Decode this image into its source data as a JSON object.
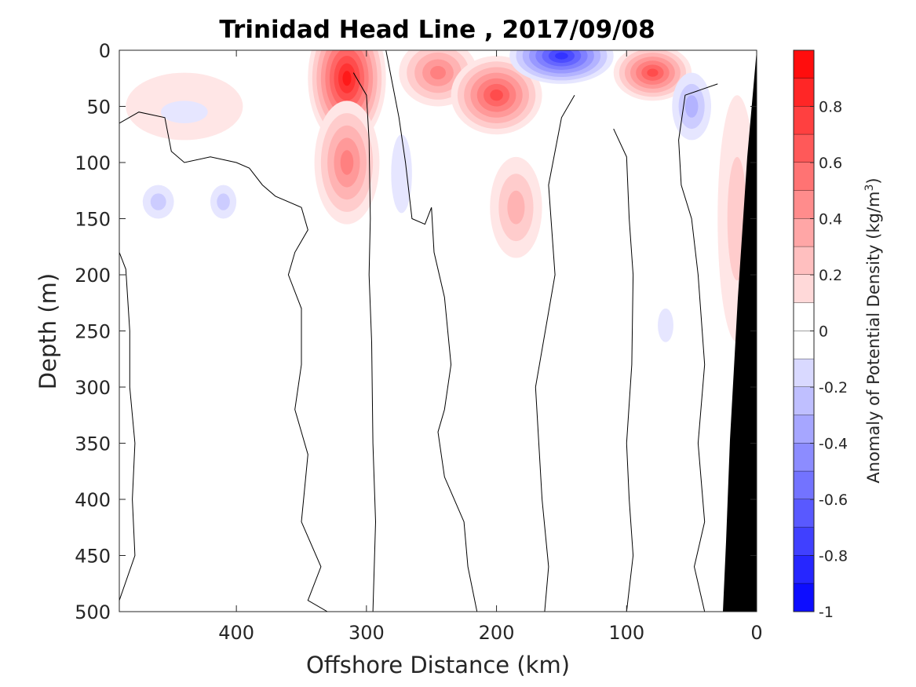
{
  "chart_data": {
    "type": "heatmap",
    "subtype": "filled contour section",
    "title": "Trinidad Head Line , 2017/09/08",
    "xlabel": "Offshore Distance (km)",
    "ylabel": "Depth (m)",
    "xlim": [
      490,
      0
    ],
    "ylim": [
      0,
      500
    ],
    "x_reversed": true,
    "y_reversed": true,
    "xticks": [
      400,
      300,
      200,
      100,
      0
    ],
    "xtick_labels": [
      "400",
      "300",
      "200",
      "100",
      "0"
    ],
    "yticks": [
      0,
      50,
      100,
      150,
      200,
      250,
      300,
      350,
      400,
      450,
      500
    ],
    "ytick_labels": [
      "0",
      "50",
      "100",
      "150",
      "200",
      "250",
      "300",
      "350",
      "400",
      "450",
      "500"
    ],
    "colorbar": {
      "label": "Anomaly of Potential Density (kg/m",
      "label_superscript": "3",
      "label_suffix": ")",
      "range": [
        -1,
        1
      ],
      "levels": 20,
      "colormap": "blue-white-red",
      "ticks": [
        0.8,
        0.6,
        0.4,
        0.2,
        0,
        -0.2,
        -0.4,
        -0.6,
        -0.8,
        -1
      ],
      "tick_labels": [
        "0.8",
        "0.6",
        "0.4",
        "0.2",
        "0",
        "-0.2",
        "-0.4",
        "-0.6",
        "-0.8",
        "-1"
      ]
    },
    "anomaly_features": [
      {
        "name": "core near 315 km",
        "x": 315,
        "depth": 25,
        "value": 0.95,
        "rx": 30,
        "ry": 60
      },
      {
        "name": "plume below core",
        "x": 315,
        "depth": 100,
        "value": 0.45,
        "rx": 25,
        "ry": 55
      },
      {
        "name": "patch near 245 km",
        "x": 245,
        "depth": 20,
        "value": 0.45,
        "rx": 30,
        "ry": 30
      },
      {
        "name": "patch near 200 km",
        "x": 200,
        "depth": 40,
        "value": 0.65,
        "rx": 35,
        "ry": 35
      },
      {
        "name": "patch near 80 km",
        "x": 80,
        "depth": 20,
        "value": 0.65,
        "rx": 30,
        "ry": 25
      },
      {
        "name": "patch near 185 km deep",
        "x": 185,
        "depth": 140,
        "value": 0.3,
        "rx": 20,
        "ry": 45
      },
      {
        "name": "near-shore positive",
        "x": 15,
        "depth": 150,
        "value": 0.2,
        "rx": 15,
        "ry": 110
      },
      {
        "name": "surface patch 430 km",
        "x": 440,
        "depth": 50,
        "value": 0.12,
        "rx": 45,
        "ry": 30
      },
      {
        "name": "negative core near 150 km",
        "x": 150,
        "depth": 5,
        "value": -0.75,
        "rx": 40,
        "ry": 25
      },
      {
        "name": "negative patch near 50 km",
        "x": 50,
        "depth": 50,
        "value": -0.28,
        "rx": 15,
        "ry": 30
      },
      {
        "name": "negative 460 km",
        "x": 460,
        "depth": 135,
        "value": -0.2,
        "rx": 12,
        "ry": 15
      },
      {
        "name": "negative 410 km",
        "x": 410,
        "depth": 135,
        "value": -0.2,
        "rx": 10,
        "ry": 15
      },
      {
        "name": "negative 445 km",
        "x": 440,
        "depth": 55,
        "value": -0.12,
        "rx": 18,
        "ry": 10
      },
      {
        "name": "negative 275 km",
        "x": 273,
        "depth": 110,
        "value": -0.15,
        "rx": 8,
        "ry": 35
      },
      {
        "name": "negative 70 km deep",
        "x": 70,
        "depth": 245,
        "value": -0.15,
        "rx": 6,
        "ry": 15
      }
    ],
    "zero_contour_lines": [
      {
        "name": "zero contour near 495 km",
        "points": [
          [
            490,
            180
          ],
          [
            485,
            195
          ],
          [
            482,
            250
          ],
          [
            482,
            300
          ],
          [
            478,
            350
          ],
          [
            480,
            400
          ],
          [
            478,
            450
          ],
          [
            490,
            490
          ]
        ]
      },
      {
        "name": "zero contour west surface loop",
        "points": [
          [
            490,
            65
          ],
          [
            475,
            55
          ],
          [
            455,
            60
          ],
          [
            450,
            90
          ],
          [
            440,
            100
          ],
          [
            420,
            95
          ],
          [
            400,
            100
          ],
          [
            390,
            105
          ],
          [
            380,
            120
          ],
          [
            370,
            130
          ],
          [
            350,
            140
          ],
          [
            345,
            160
          ],
          [
            355,
            180
          ],
          [
            360,
            200
          ],
          [
            350,
            230
          ],
          [
            350,
            280
          ],
          [
            355,
            320
          ],
          [
            345,
            360
          ],
          [
            350,
            420
          ],
          [
            335,
            460
          ],
          [
            345,
            490
          ],
          [
            330,
            500
          ]
        ]
      },
      {
        "name": "zero contour around 300 km",
        "points": [
          [
            310,
            20
          ],
          [
            300,
            40
          ],
          [
            298,
            80
          ],
          [
            297,
            150
          ],
          [
            298,
            200
          ],
          [
            296,
            260
          ],
          [
            295,
            350
          ],
          [
            293,
            420
          ],
          [
            295,
            500
          ]
        ]
      },
      {
        "name": "zero contour around 270 km",
        "points": [
          [
            285,
            0
          ],
          [
            280,
            30
          ],
          [
            275,
            60
          ],
          [
            270,
            100
          ],
          [
            265,
            150
          ],
          [
            255,
            155
          ],
          [
            250,
            140
          ],
          [
            248,
            180
          ],
          [
            240,
            220
          ],
          [
            235,
            280
          ],
          [
            240,
            320
          ],
          [
            245,
            340
          ],
          [
            240,
            380
          ],
          [
            225,
            420
          ],
          [
            222,
            460
          ],
          [
            215,
            500
          ]
        ]
      },
      {
        "name": "zero contour near 150 km",
        "points": [
          [
            140,
            40
          ],
          [
            150,
            60
          ],
          [
            160,
            120
          ],
          [
            155,
            200
          ],
          [
            170,
            300
          ],
          [
            165,
            400
          ],
          [
            160,
            460
          ],
          [
            163,
            500
          ]
        ]
      },
      {
        "name": "zero contour near 100 km",
        "points": [
          [
            110,
            70
          ],
          [
            100,
            95
          ],
          [
            98,
            150
          ],
          [
            95,
            200
          ],
          [
            96,
            280
          ],
          [
            100,
            350
          ],
          [
            98,
            400
          ],
          [
            95,
            450
          ],
          [
            100,
            500
          ]
        ]
      },
      {
        "name": "zero contour near 60 km",
        "points": [
          [
            30,
            30
          ],
          [
            55,
            40
          ],
          [
            60,
            80
          ],
          [
            58,
            120
          ],
          [
            50,
            150
          ],
          [
            45,
            200
          ],
          [
            40,
            280
          ],
          [
            45,
            350
          ],
          [
            40,
            420
          ],
          [
            48,
            460
          ],
          [
            40,
            500
          ]
        ]
      }
    ]
  }
}
